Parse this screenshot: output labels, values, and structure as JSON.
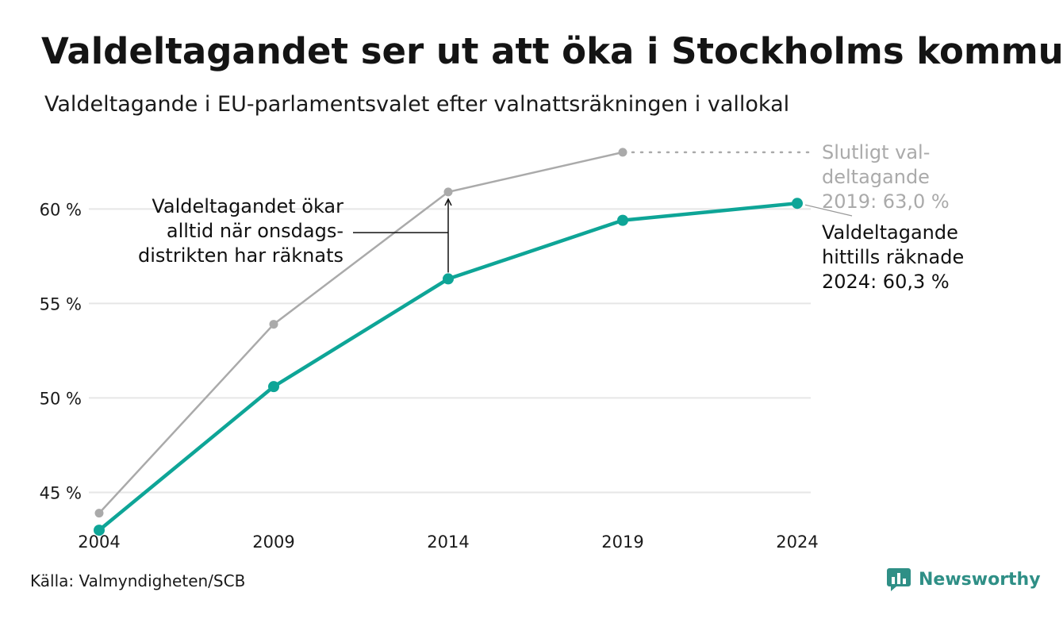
{
  "title": "Valdeltagandet ser ut att öka i Stockholms kommun",
  "subtitle": "Valdeltagande i EU-parlamentsvalet efter valnattsräkningen i vallokal",
  "source": "Källa: Valmyndigheten/SCB",
  "brand": "Newsworthy",
  "colors": {
    "current": "#0ea597",
    "final": "#aaaaaa",
    "grid": "#e6e6e6",
    "brand": "#2f8f86"
  },
  "annotations": {
    "left": [
      "Valdeltagandet ökar",
      "alltid när onsdags-",
      "distrikten har räknats"
    ],
    "final": [
      "Slutligt val-",
      "deltagande",
      "2019: 63,0 %"
    ],
    "current": [
      "Valdeltagande",
      "hittills räknade",
      "2024: 60,3 %"
    ]
  },
  "chart_data": {
    "type": "line",
    "title": "Valdeltagandet ser ut att öka i Stockholms kommun",
    "subtitle": "Valdeltagande i EU-parlamentsvalet efter valnattsräkningen i vallokal",
    "x": [
      2004,
      2009,
      2014,
      2019,
      2024
    ],
    "x_tick_labels": [
      "2004",
      "2009",
      "2014",
      "2019",
      "2024"
    ],
    "y_ticks": [
      45,
      50,
      55,
      60
    ],
    "y_tick_labels": [
      "45 %",
      "50 %",
      "55 %",
      "60 %"
    ],
    "ylim": [
      42.5,
      63.5
    ],
    "grid": true,
    "series": [
      {
        "key": "final",
        "x": [
          2004,
          2009,
          2014,
          2019
        ],
        "values": [
          43.9,
          53.9,
          60.9,
          63.0
        ]
      },
      {
        "key": "current",
        "x": [
          2004,
          2009,
          2014,
          2019,
          2024
        ],
        "values": [
          43.0,
          50.6,
          56.3,
          59.4,
          60.3
        ]
      }
    ]
  }
}
